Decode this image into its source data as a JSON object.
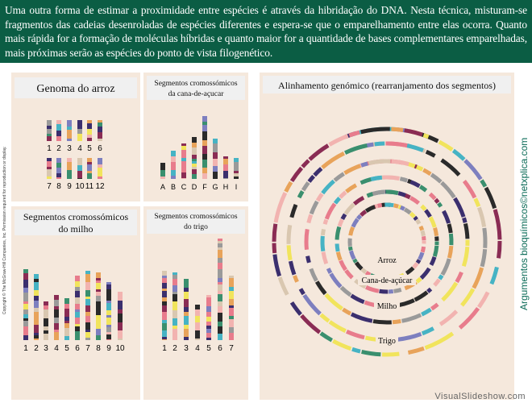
{
  "banner": {
    "text": "Uma outra forma de estimar a proximidade entre espécies é através da hibridação do DNA. Nesta técnica, misturam-se fragmentos das cadeias desenroladas de espécies diferentes e espera-se que o emparelhamento entre elas ocorra. Quanto mais rápida for a formação de moléculas híbridas e quanto maior for a quantidade de bases complementares emparelhadas, mais próximas serão as espécies do ponto de vista filogenético."
  },
  "copyright": "Copyright © The McGraw-Hill Companies, Inc. Permission required for reproduction or display.",
  "credit": "Argumentos bioquímicos©netxplica.com",
  "footer": "VisualSlideshow.com",
  "panels": {
    "rice": {
      "title": "Genoma do arroz",
      "row1": [
        "1",
        "2",
        "3",
        "4",
        "5",
        "6"
      ],
      "row2": [
        "7",
        "8",
        "9",
        "10",
        "11",
        "12"
      ]
    },
    "cane": {
      "title_line1": "Segmentos cromossómicos",
      "title_line2": "da cana-de-açucar",
      "labels": [
        "A",
        "B",
        "C",
        "D",
        "F",
        "G",
        "H",
        "I"
      ]
    },
    "maize": {
      "title_line1": "Segmentos cromossómicos",
      "title_line2": "do milho",
      "labels": [
        "1",
        "2",
        "3",
        "4",
        "5",
        "6",
        "7",
        "8",
        "9",
        "10"
      ]
    },
    "wheat": {
      "title_line1": "Segmentos cromossómicos",
      "title_line2": "do trigo",
      "labels": [
        "1",
        "2",
        "3",
        "4",
        "5",
        "6",
        "7"
      ]
    },
    "alignment": {
      "title": "Alinhamento genómico (rearranjamento dos segmentos)",
      "rings": [
        "Arroz",
        "Cana-de-açúcar",
        "Milho",
        "Trigo"
      ]
    }
  },
  "colors": {
    "banner_bg": "#0b5d44",
    "panel_bg": "#f5e8dc",
    "title_bg": "#f0f0f0",
    "chrom_palette": [
      "#46b3c4",
      "#e87c8c",
      "#3b2f6e",
      "#f1e45c",
      "#8a2c54",
      "#7d7fbf",
      "#9a9a9a",
      "#d9c7b0",
      "#2a2a2a",
      "#f2b3b0",
      "#3a8f6e",
      "#e8a35a"
    ]
  }
}
